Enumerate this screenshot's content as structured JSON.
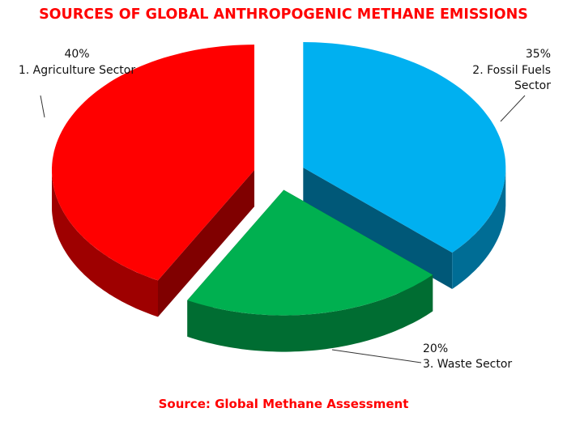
{
  "chart_data": {
    "type": "pie3d",
    "title": "SOURCES OF GLOBAL ANTHROPOGENIC METHANE EMISSIONS",
    "categories": [
      "1. Agriculture Sector",
      "2. Fossil Fuels Sector",
      "3. Waste Sector"
    ],
    "values": [
      40,
      35,
      20
    ],
    "value_labels": [
      "40%",
      "35%",
      "20%"
    ],
    "colors": [
      "#ff0000",
      "#00b0f0",
      "#00b050"
    ],
    "source": "Source: Global Methane Assessment"
  }
}
